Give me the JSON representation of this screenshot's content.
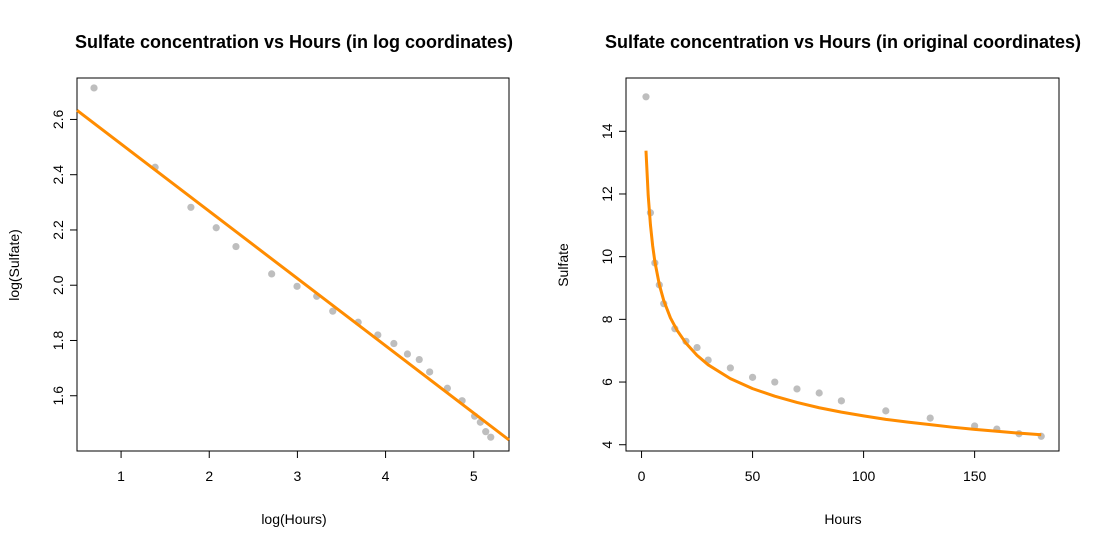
{
  "chart_data": [
    {
      "type": "scatter",
      "title": "Sulfate concentration vs Hours (in log coordinates)",
      "xlabel": "log(Hours)",
      "ylabel": "log(Sulfate)",
      "xlim": [
        0.5,
        5.4
      ],
      "ylim": [
        1.4,
        2.75
      ],
      "xticks": [
        1,
        2,
        3,
        4,
        5
      ],
      "yticks": [
        1.6,
        1.8,
        2.0,
        2.2,
        2.4,
        2.6
      ],
      "xtick_labels": [
        "1",
        "2",
        "3",
        "4",
        "5"
      ],
      "ytick_labels": [
        "1.6",
        "1.8",
        "2.0",
        "2.2",
        "2.4",
        "2.6"
      ],
      "grid": false,
      "colors": {
        "points": "#bebebe",
        "fit": "#ff8c00"
      },
      "points": {
        "x": [
          0.693,
          1.386,
          1.792,
          2.079,
          2.303,
          2.708,
          2.996,
          3.219,
          3.401,
          3.689,
          3.912,
          4.094,
          4.248,
          4.382,
          4.5,
          4.701,
          4.868,
          5.01,
          5.075,
          5.136,
          5.193
        ],
        "y": [
          2.714,
          2.427,
          2.282,
          2.208,
          2.14,
          2.041,
          1.996,
          1.96,
          1.906,
          1.866,
          1.82,
          1.789,
          1.751,
          1.731,
          1.686,
          1.627,
          1.582,
          1.526,
          1.504,
          1.47,
          1.45
        ]
      },
      "fit_line": {
        "x": [
          0.5,
          5.4
        ],
        "y": [
          2.633,
          1.44
        ]
      }
    },
    {
      "type": "scatter",
      "title": "Sulfate concentration vs Hours (in original coordinates)",
      "xlabel": "Hours",
      "ylabel": "Sulfate",
      "xlim": [
        -7,
        188
      ],
      "ylim": [
        3.8,
        15.7
      ],
      "xticks": [
        0,
        50,
        100,
        150
      ],
      "yticks": [
        4,
        6,
        8,
        10,
        12,
        14
      ],
      "xtick_labels": [
        "0",
        "50",
        "100",
        "150"
      ],
      "ytick_labels": [
        "4",
        "6",
        "8",
        "10",
        "12",
        "14"
      ],
      "grid": false,
      "colors": {
        "points": "#bebebe",
        "fit": "#ff8c00"
      },
      "points": {
        "x": [
          2,
          4,
          6,
          8,
          10,
          15,
          20,
          25,
          30,
          40,
          50,
          60,
          70,
          80,
          90,
          110,
          130,
          150,
          160,
          170,
          180
        ],
        "y": [
          15.1,
          11.4,
          9.8,
          9.1,
          8.5,
          7.7,
          7.3,
          7.1,
          6.7,
          6.45,
          6.15,
          6.0,
          5.78,
          5.65,
          5.4,
          5.08,
          4.85,
          4.6,
          4.5,
          4.35,
          4.27
        ]
      },
      "fit_curve": {
        "x": [
          2,
          3,
          4,
          5,
          6,
          8,
          10,
          13,
          16,
          20,
          25,
          30,
          40,
          50,
          60,
          70,
          80,
          90,
          100,
          110,
          120,
          130,
          140,
          150,
          160,
          170,
          180
        ],
        "y": [
          13.38,
          11.95,
          11.02,
          10.35,
          9.84,
          9.11,
          8.6,
          8.05,
          7.65,
          7.24,
          6.85,
          6.55,
          6.11,
          5.79,
          5.55,
          5.35,
          5.18,
          5.04,
          4.92,
          4.81,
          4.72,
          4.64,
          4.56,
          4.49,
          4.43,
          4.37,
          4.32
        ]
      }
    }
  ]
}
